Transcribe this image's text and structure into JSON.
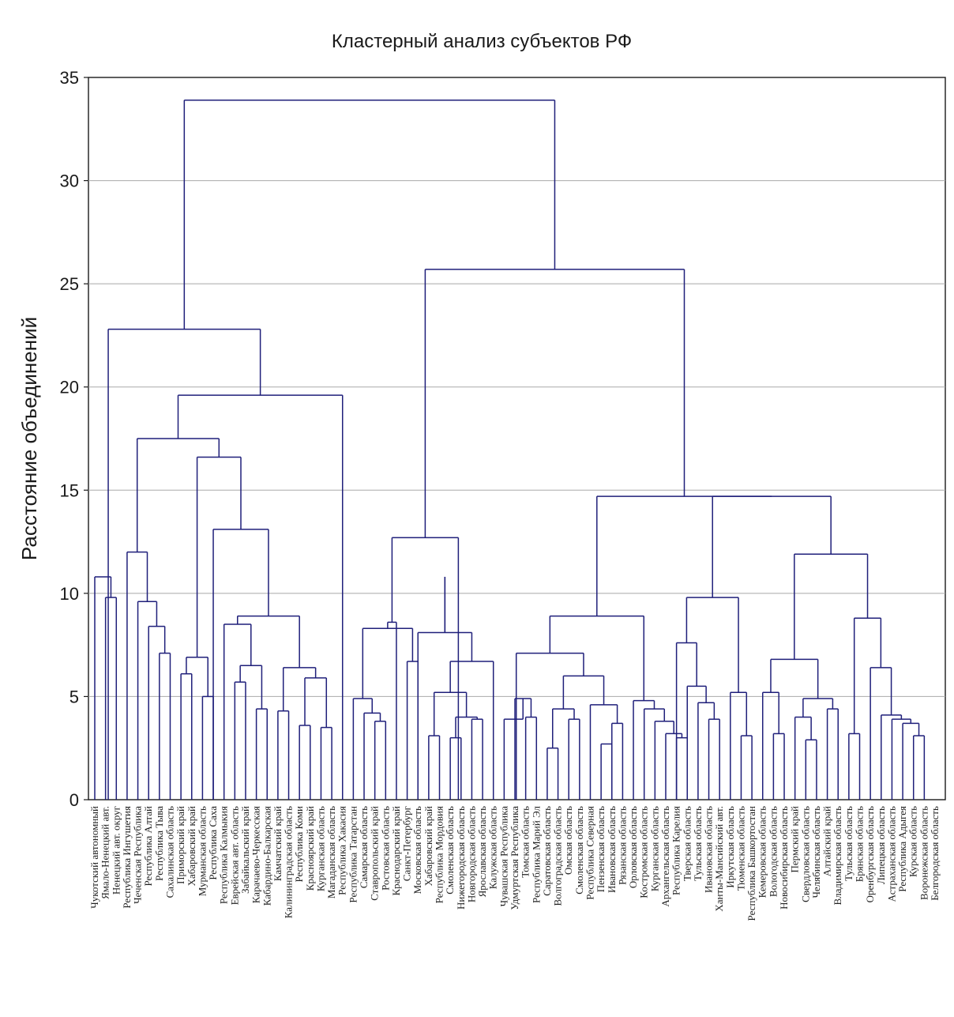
{
  "chart_data": {
    "type": "dendrogram",
    "title": "Кластерный анализ субъектов РФ",
    "ylabel": "Расстояние объединений",
    "xlabel": "",
    "ylim": [
      0,
      35
    ],
    "yticks": [
      0,
      5,
      10,
      15,
      20,
      25,
      30,
      35
    ],
    "grid": true,
    "line_color": "#1f1f7a",
    "grid_color": "#a9a9a9",
    "leaves": [
      "Чукотский автономный",
      "Ямало-Ненецкий авт.",
      "Ненецкий авт. округ",
      "Республика Ингушетия",
      "Чеченская Республика",
      "Республика Алтай",
      "Республика Тыва",
      "Сахалинская область",
      "Приморский край",
      "Хабаровский край",
      "Мурманская область",
      "Республика Саха",
      "Республика Калмыкия",
      "Еврейская авт. область",
      "Забайкальский край",
      "Карачаево-Черкесская",
      "Кабардино-Балкарская",
      "Камчатский край",
      "Калининградская область",
      "Республика Коми",
      "Красноярский край",
      "Курганская область",
      "Магаданская область",
      "Республика Хакасия",
      "Республика Татарстан",
      "Самарская область",
      "Ставропольский край",
      "Ростовская область",
      "Краснодарский край",
      "Санкт-Петербург",
      "Московская область",
      "Хабаровский край",
      "Республика Мордовия",
      "Смоленская область",
      "Нижегородская область",
      "Новгородская область",
      "Ярославская область",
      "Калужская область",
      "Чувашская Республика",
      "Удмуртская Республика",
      "Томская область",
      "Республика Марий Эл",
      "Саратовская область",
      "Волгоградская область",
      "Омская область",
      "Смоленская область",
      "Республика Северная",
      "Пензенская область",
      "Ивановская область",
      "Рязанская область",
      "Орловская область",
      "Костромская область",
      "Курганская область",
      "Архангельская область",
      "Республика Карелия",
      "Тверская область",
      "Тульская область",
      "Ивановская область",
      "Ханты-Мансийский авт.",
      "Иркутская область",
      "Тюменская область",
      "Республика Башкортостан",
      "Кемеровская область",
      "Вологодская область",
      "Новосибирская область",
      "Пермский край",
      "Свердловская область",
      "Челябинская область",
      "Алтайский край",
      "Владимирская область",
      "Тульская область",
      "Брянская область",
      "Оренбургская область",
      "Липецкая область",
      "Астраханская область",
      "Республика Адыгея",
      "Курская область",
      "Воронежская область",
      "Белгородская область"
    ],
    "merges": [
      {
        "x1": 1,
        "x2": 2,
        "y": 9.8
      },
      {
        "x1": 0,
        "x2": 1.5,
        "y": 10.8
      },
      {
        "x1": 6,
        "x2": 7,
        "y": 7.1
      },
      {
        "x1": 5,
        "x2": 6.5,
        "y": 8.4
      },
      {
        "x1": 4,
        "x2": 5.75,
        "y": 9.6
      },
      {
        "x1": 3,
        "x2": 4.875,
        "y": 12.0
      },
      {
        "x1": 8,
        "x2": 9,
        "y": 6.1
      },
      {
        "x1": 10,
        "x2": 11,
        "y": 5.0
      },
      {
        "x1": 8.5,
        "x2": 10.5,
        "y": 6.9
      },
      {
        "x1": 13,
        "x2": 14,
        "y": 5.7
      },
      {
        "x1": 15,
        "x2": 16,
        "y": 4.4
      },
      {
        "x1": 13.5,
        "x2": 15.5,
        "y": 6.5
      },
      {
        "x1": 12,
        "x2": 14.5,
        "y": 8.5
      },
      {
        "x1": 19,
        "x2": 20,
        "y": 3.6
      },
      {
        "x1": 21,
        "x2": 22,
        "y": 3.5
      },
      {
        "x1": 19.5,
        "x2": 21.5,
        "y": 5.9
      },
      {
        "x1": 17,
        "x2": 18,
        "y": 4.3
      },
      {
        "x1": 17.5,
        "x2": 20.5,
        "y": 6.4
      },
      {
        "x1": 13.25,
        "x2": 19,
        "y": 8.9
      },
      {
        "x1": 11,
        "x2": 16.125,
        "y": 13.1
      },
      {
        "x1": 9.5,
        "x2": 13.5625,
        "y": 16.6
      },
      {
        "x1": 3.9375,
        "x2": 11.53125,
        "y": 17.5
      },
      {
        "x1": 23,
        "x2": 7.734375,
        "y": 19.6
      },
      {
        "x1": 1.25,
        "x2": 15.3671875,
        "y": 22.8
      },
      {
        "x1": 26,
        "x2": 27,
        "y": 3.8
      },
      {
        "x1": 25,
        "x2": 26.5,
        "y": 4.2
      },
      {
        "x1": 24,
        "x2": 25.75,
        "y": 4.9
      },
      {
        "x1": 29,
        "x2": 30,
        "y": 6.7
      },
      {
        "x1": 24.875,
        "x2": 29.5,
        "y": 8.3
      },
      {
        "x1": 28,
        "x2": 27.1875,
        "y": 8.6
      },
      {
        "x1": 31,
        "x2": 32,
        "y": 3.1
      },
      {
        "x1": 33,
        "x2": 34,
        "y": 3.0
      },
      {
        "x1": 35,
        "x2": 36,
        "y": 3.9
      },
      {
        "x1": 33.5,
        "x2": 35.5,
        "y": 4.0
      },
      {
        "x1": 31.5,
        "x2": 34.5,
        "y": 5.2
      },
      {
        "x1": 37,
        "x2": 33,
        "y": 6.7
      },
      {
        "x1": 30,
        "x2": 35,
        "y": 8.1
      },
      {
        "x1": 32.5,
        "x2": 32.5,
        "y": 10.8
      },
      {
        "x1": 27.59375,
        "x2": 33.75,
        "y": 12.7
      },
      {
        "x1": 40,
        "x2": 41,
        "y": 4.0
      },
      {
        "x1": 39,
        "x2": 40.5,
        "y": 4.9
      },
      {
        "x1": 38,
        "x2": 39.75,
        "y": 3.9
      },
      {
        "x1": 42,
        "x2": 43,
        "y": 2.5
      },
      {
        "x1": 44,
        "x2": 45,
        "y": 3.9
      },
      {
        "x1": 42.5,
        "x2": 44.5,
        "y": 4.4
      },
      {
        "x1": 47,
        "x2": 48,
        "y": 2.7
      },
      {
        "x1": 49,
        "x2": 48,
        "y": 3.7
      },
      {
        "x1": 46,
        "x2": 48.5,
        "y": 4.6
      },
      {
        "x1": 43.5,
        "x2": 47.25,
        "y": 6.0
      },
      {
        "x1": 39.125,
        "x2": 45.375,
        "y": 7.1
      },
      {
        "x1": 54,
        "x2": 55,
        "y": 3.0
      },
      {
        "x1": 53,
        "x2": 54.5,
        "y": 3.2
      },
      {
        "x1": 52,
        "x2": 53.75,
        "y": 3.8
      },
      {
        "x1": 51,
        "x2": 52.875,
        "y": 4.4
      },
      {
        "x1": 50,
        "x2": 51.9375,
        "y": 4.8
      },
      {
        "x1": 42.25,
        "x2": 50.96875,
        "y": 8.9
      },
      {
        "x1": 57,
        "x2": 58,
        "y": 3.9
      },
      {
        "x1": 56,
        "x2": 57.5,
        "y": 4.7
      },
      {
        "x1": 55,
        "x2": 56.75,
        "y": 5.5
      },
      {
        "x1": 54,
        "x2": 55.875,
        "y": 7.6
      },
      {
        "x1": 60,
        "x2": 61,
        "y": 3.1
      },
      {
        "x1": 59,
        "x2": 60.5,
        "y": 5.2
      },
      {
        "x1": 54.9375,
        "x2": 59.75,
        "y": 9.8
      },
      {
        "x1": 63,
        "x2": 64,
        "y": 3.2
      },
      {
        "x1": 62,
        "x2": 63.5,
        "y": 5.2
      },
      {
        "x1": 66,
        "x2": 67,
        "y": 2.9
      },
      {
        "x1": 65,
        "x2": 66.5,
        "y": 4.0
      },
      {
        "x1": 68,
        "x2": 69,
        "y": 4.4
      },
      {
        "x1": 65.75,
        "x2": 68.5,
        "y": 4.9
      },
      {
        "x1": 62.75,
        "x2": 67.125,
        "y": 6.8
      },
      {
        "x1": 70,
        "x2": 71,
        "y": 3.2
      },
      {
        "x1": 76,
        "x2": 77,
        "y": 3.1
      },
      {
        "x1": 75,
        "x2": 76.5,
        "y": 3.7
      },
      {
        "x1": 74,
        "x2": 75.75,
        "y": 3.9
      },
      {
        "x1": 73,
        "x2": 74.875,
        "y": 4.1
      },
      {
        "x1": 72,
        "x2": 73.9375,
        "y": 6.4
      },
      {
        "x1": 70.5,
        "x2": 72.96875,
        "y": 8.8
      },
      {
        "x1": 64.9375,
        "x2": 71.734375,
        "y": 11.9
      },
      {
        "x1": 57.34375,
        "x2": 68.3359375,
        "y": 14.7
      },
      {
        "x1": 46.609375,
        "x2": 62.83984375,
        "y": 14.7
      },
      {
        "x1": 30.671875,
        "x2": 54.724609375,
        "y": 25.7
      },
      {
        "x1": 8.30859375,
        "x2": 42.6982421875,
        "y": 33.9
      }
    ]
  }
}
